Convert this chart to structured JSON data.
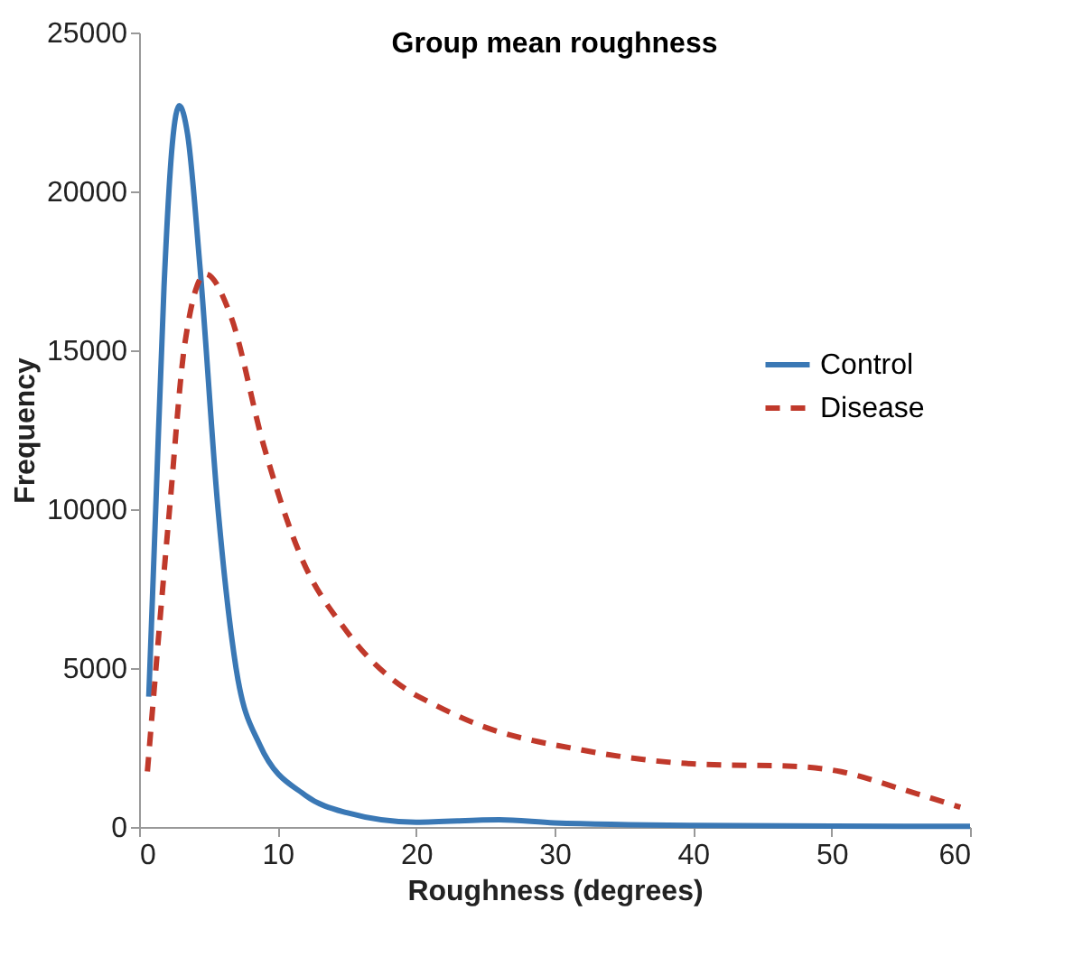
{
  "chart_data": {
    "type": "line",
    "title": "Group mean roughness",
    "xlabel": "Roughness (degrees)",
    "ylabel": "Frequency",
    "xlim": [
      0,
      60
    ],
    "xticks": [
      0,
      10,
      20,
      30,
      40,
      50,
      60
    ],
    "ylim": [
      0,
      25000
    ],
    "yticks": [
      0,
      5000,
      10000,
      15000,
      20000,
      25000
    ],
    "grid": false,
    "legend": "right",
    "marker": "none",
    "series": [
      {
        "name": "Control",
        "color": "#3a78b5",
        "line_style": "solid",
        "x": [
          0.7,
          1.2,
          1.8,
          2.4,
          2.9,
          3.5,
          4.4,
          5.7,
          7,
          8.7,
          12,
          15,
          20,
          26,
          30,
          40,
          50,
          60
        ],
        "values": [
          4100,
          10000,
          17000,
          21500,
          22700,
          21800,
          17600,
          10000,
          5000,
          2600,
          1000,
          450,
          150,
          230,
          130,
          50,
          30,
          20
        ]
      },
      {
        "name": "Disease",
        "color": "#c0392b",
        "line_style": "dashed",
        "x": [
          0.6,
          2.2,
          3.3,
          4.8,
          6.6,
          9,
          11.6,
          15,
          19.4,
          21.1,
          24.2,
          32,
          40.7,
          47.2,
          50.7,
          55,
          59.3
        ],
        "values": [
          1750,
          10000,
          15200,
          17400,
          16100,
          12000,
          8600,
          6150,
          4300,
          3900,
          3270,
          2420,
          1970,
          1910,
          1740,
          1200,
          620
        ]
      }
    ]
  }
}
